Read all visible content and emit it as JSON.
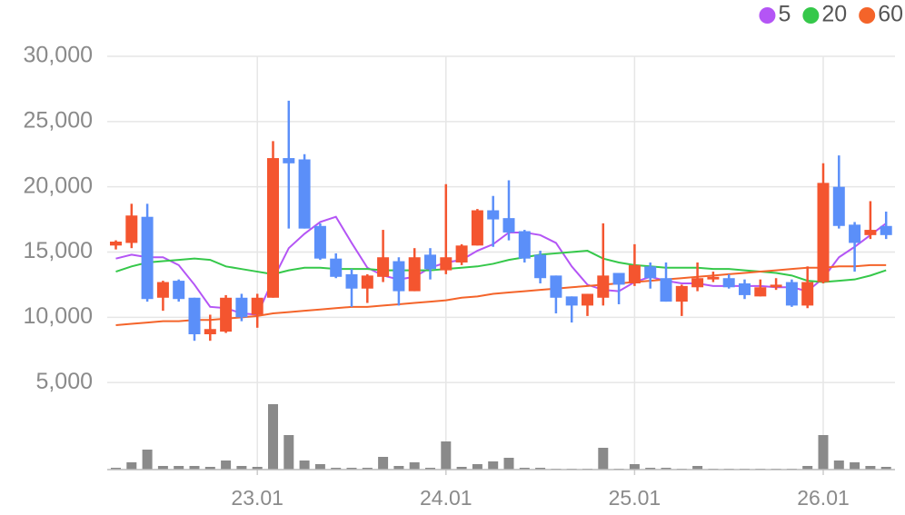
{
  "chart_data": {
    "type": "candlestick",
    "categories": [
      null,
      null,
      null,
      null,
      null,
      null,
      null,
      null,
      null,
      "23.01",
      null,
      null,
      null,
      null,
      null,
      null,
      null,
      null,
      null,
      null,
      null,
      "24.01",
      null,
      null,
      null,
      null,
      null,
      null,
      null,
      null,
      null,
      null,
      null,
      "25.01",
      null,
      null,
      null,
      null,
      null,
      null,
      null,
      null,
      null,
      null,
      null,
      "26.01",
      null,
      null,
      null,
      null
    ],
    "open": [
      15500,
      15700,
      17700,
      11500,
      12800,
      11500,
      8700,
      8900,
      11500,
      10200,
      11500,
      22200,
      22100,
      17000,
      14500,
      13300,
      12200,
      13100,
      14300,
      12000,
      14800,
      13600,
      14200,
      15500,
      18200,
      17600,
      16600,
      14800,
      13200,
      11600,
      10900,
      11500,
      13400,
      12600,
      13900,
      13000,
      11200,
      12300,
      12900,
      13000,
      12600,
      11600,
      12300,
      12700,
      10900,
      12700,
      20000,
      17100,
      16300,
      17000
    ],
    "high": [
      15900,
      18700,
      18700,
      12800,
      12900,
      11500,
      10200,
      11700,
      11800,
      11800,
      23500,
      26600,
      22500,
      17200,
      14900,
      13700,
      13300,
      16700,
      14600,
      15300,
      15300,
      20200,
      15600,
      18300,
      19300,
      20500,
      16700,
      15100,
      13200,
      11600,
      11800,
      17200,
      13400,
      15600,
      14200,
      14200,
      12500,
      14200,
      13500,
      13300,
      12900,
      12900,
      13000,
      12900,
      13900,
      21800,
      22400,
      17300,
      18900,
      18100
    ],
    "low": [
      15200,
      15300,
      11200,
      10500,
      11200,
      8200,
      8200,
      8800,
      9700,
      9200,
      11500,
      16800,
      16800,
      14400,
      13000,
      10800,
      11100,
      12700,
      10900,
      12000,
      12900,
      13300,
      14000,
      15500,
      15400,
      15900,
      14200,
      12600,
      10300,
      9600,
      10100,
      10900,
      11000,
      12400,
      12200,
      11200,
      10100,
      12000,
      12700,
      12200,
      11400,
      11600,
      12100,
      10800,
      10700,
      12600,
      16800,
      13500,
      16000,
      16000
    ],
    "close": [
      15800,
      17800,
      11400,
      12700,
      11400,
      8700,
      9100,
      11500,
      10000,
      11500,
      22200,
      21800,
      16800,
      14500,
      13100,
      12200,
      13200,
      14600,
      12000,
      14600,
      13700,
      14600,
      15500,
      18200,
      17500,
      16500,
      14500,
      13000,
      11500,
      10900,
      11800,
      13200,
      12500,
      14000,
      13000,
      11200,
      12400,
      13000,
      13100,
      12300,
      11700,
      12300,
      12500,
      10900,
      12700,
      20300,
      17000,
      15700,
      16700,
      16300
    ],
    "up_color": "#f4552f",
    "down_color": "#5b8ff9",
    "volume": [
      2,
      8,
      22,
      4,
      4,
      4,
      3,
      10,
      4,
      3,
      72,
      38,
      10,
      6,
      2,
      2,
      2,
      14,
      4,
      8,
      2,
      31,
      3,
      6,
      9,
      13,
      2,
      2,
      1,
      1,
      1,
      24,
      1,
      6,
      2,
      2,
      1,
      4,
      1,
      1,
      1,
      1,
      1,
      1,
      4,
      38,
      10,
      8,
      4,
      3
    ],
    "volume_color": "#8a8a8a",
    "series": [
      {
        "name": "5",
        "color": "#b455f5",
        "values": [
          14500,
          14800,
          14600,
          14600,
          14000,
          12500,
          10800,
          10700,
          10300,
          10200,
          12900,
          15300,
          16400,
          17300,
          17700,
          15700,
          13800,
          13200,
          12900,
          13100,
          13800,
          14200,
          14400,
          15100,
          15600,
          16500,
          16500,
          16300,
          15700,
          13900,
          12500,
          12100,
          12000,
          12700,
          13100,
          12800,
          12600,
          12600,
          12400,
          12400,
          12400,
          12400,
          12300,
          12300,
          12000,
          13000,
          14600,
          15400,
          16300,
          17200
        ]
      },
      {
        "name": "20",
        "color": "#35c84a",
        "values": [
          13500,
          13900,
          14200,
          14300,
          14400,
          14500,
          14400,
          13900,
          13700,
          13500,
          13300,
          13600,
          13800,
          13800,
          13700,
          13700,
          13700,
          13600,
          13600,
          13600,
          13600,
          13700,
          13800,
          13900,
          14100,
          14400,
          14600,
          14800,
          14900,
          15000,
          15100,
          14500,
          14200,
          14000,
          13900,
          13800,
          13800,
          13800,
          13700,
          13700,
          13600,
          13500,
          13400,
          13200,
          12800,
          12700,
          12800,
          12900,
          13200,
          13600
        ]
      },
      {
        "name": "60",
        "color": "#f4642a",
        "values": [
          9400,
          9500,
          9600,
          9700,
          9700,
          9800,
          9800,
          9900,
          10000,
          10100,
          10300,
          10400,
          10500,
          10600,
          10700,
          10800,
          10800,
          10900,
          11000,
          11100,
          11200,
          11300,
          11500,
          11600,
          11800,
          11900,
          12000,
          12100,
          12200,
          12300,
          12400,
          12500,
          12600,
          12700,
          12800,
          12900,
          13000,
          13100,
          13200,
          13300,
          13400,
          13500,
          13600,
          13700,
          13800,
          13800,
          13900,
          13900,
          14000,
          14000
        ]
      }
    ],
    "ylim": [
      0,
      30000
    ],
    "yticks": [
      {
        "value": 5000,
        "label": "5,000"
      },
      {
        "value": 10000,
        "label": "10,000"
      },
      {
        "value": 15000,
        "label": "15,000"
      },
      {
        "value": 20000,
        "label": "20,000"
      },
      {
        "value": 25000,
        "label": "25,000"
      },
      {
        "value": 30000,
        "label": "30,000"
      }
    ],
    "grid": true,
    "legend": "top-right"
  }
}
